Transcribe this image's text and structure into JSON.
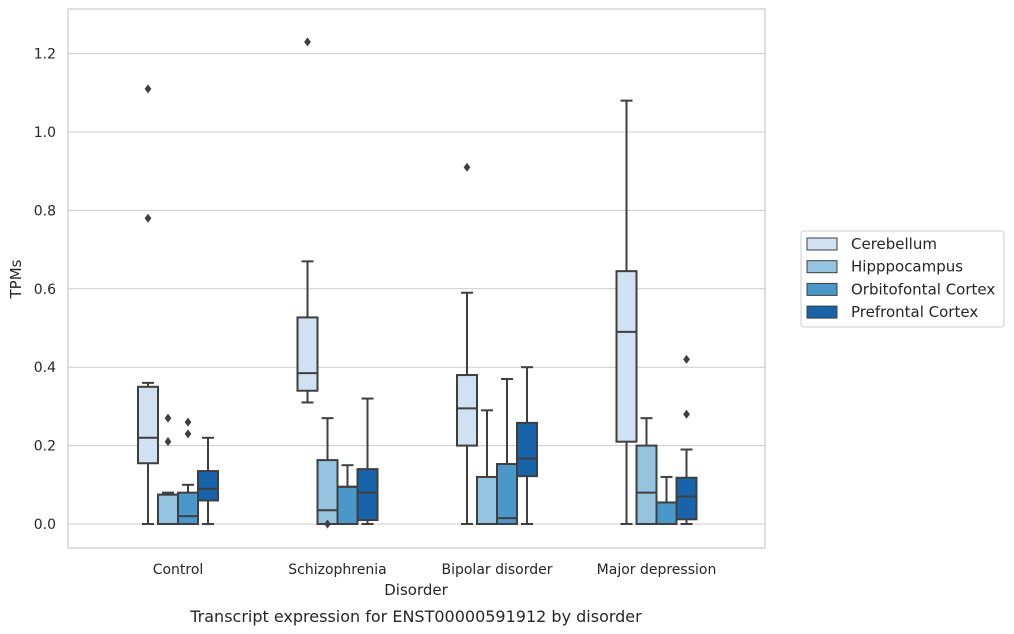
{
  "chart_data": {
    "type": "box",
    "xlabel": "Disorder",
    "ylabel": "TPMs",
    "caption": "Transcript expression for ENST00000591912 by disorder",
    "ylim": [
      -0.06,
      1.32
    ],
    "yticks": [
      0.0,
      0.2,
      0.4,
      0.6,
      0.8,
      1.0,
      1.2
    ],
    "ytick_labels": [
      "0.0",
      "0.2",
      "0.4",
      "0.6",
      "0.8",
      "1.0",
      "1.2"
    ],
    "grid": "horizontal",
    "legend_position": "right",
    "categories": [
      "Control",
      "Schizophrenia",
      "Bipolar disorder",
      "Major depression"
    ],
    "series": [
      {
        "name": "Cerebellum",
        "color": "#d0e1f2",
        "boxes": [
          {
            "whislo": 0.0,
            "q1": 0.155,
            "med": 0.22,
            "q3": 0.35,
            "whishi": 0.36,
            "fliers": [
              0.78,
              1.11
            ]
          },
          {
            "whislo": 0.31,
            "q1": 0.34,
            "med": 0.385,
            "q3": 0.527,
            "whishi": 0.67,
            "fliers": [
              1.23
            ]
          },
          {
            "whislo": 0.0,
            "q1": 0.2,
            "med": 0.295,
            "q3": 0.38,
            "whishi": 0.59,
            "fliers": [
              0.91
            ]
          },
          {
            "whislo": 0.0,
            "q1": 0.21,
            "med": 0.49,
            "q3": 0.645,
            "whishi": 1.08,
            "fliers": []
          }
        ]
      },
      {
        "name": "Hipppocampus",
        "color": "#94c4df",
        "boxes": [
          {
            "whislo": 0.0,
            "q1": 0.0,
            "med": 0.075,
            "q3": 0.075,
            "whishi": 0.08,
            "fliers": [
              0.21,
              0.27
            ]
          },
          {
            "whislo": 0.0,
            "q1": 0.0,
            "med": 0.035,
            "q3": 0.163,
            "whishi": 0.27,
            "fliers": [
              0.0
            ]
          },
          {
            "whislo": 0.0,
            "q1": 0.0,
            "med": 0.0,
            "q3": 0.12,
            "whishi": 0.29,
            "fliers": []
          },
          {
            "whislo": 0.0,
            "q1": 0.0,
            "med": 0.08,
            "q3": 0.2,
            "whishi": 0.27,
            "fliers": []
          }
        ]
      },
      {
        "name": "Orbitofontal Cortex",
        "color": "#4a98c9",
        "boxes": [
          {
            "whislo": 0.0,
            "q1": 0.0,
            "med": 0.02,
            "q3": 0.08,
            "whishi": 0.1,
            "fliers": [
              0.23,
              0.26
            ]
          },
          {
            "whislo": 0.0,
            "q1": 0.0,
            "med": 0.095,
            "q3": 0.095,
            "whishi": 0.15,
            "fliers": []
          },
          {
            "whislo": 0.0,
            "q1": 0.0,
            "med": 0.015,
            "q3": 0.153,
            "whishi": 0.37,
            "fliers": []
          },
          {
            "whislo": 0.0,
            "q1": 0.0,
            "med": 0.055,
            "q3": 0.055,
            "whishi": 0.12,
            "fliers": []
          }
        ]
      },
      {
        "name": "Prefrontal Cortex",
        "color": "#1764ab",
        "boxes": [
          {
            "whislo": 0.0,
            "q1": 0.06,
            "med": 0.09,
            "q3": 0.135,
            "whishi": 0.22,
            "fliers": []
          },
          {
            "whislo": 0.0,
            "q1": 0.01,
            "med": 0.08,
            "q3": 0.14,
            "whishi": 0.32,
            "fliers": []
          },
          {
            "whislo": 0.0,
            "q1": 0.122,
            "med": 0.167,
            "q3": 0.258,
            "whishi": 0.4,
            "fliers": []
          },
          {
            "whislo": 0.0,
            "q1": 0.012,
            "med": 0.07,
            "q3": 0.118,
            "whishi": 0.19,
            "fliers": [
              0.28,
              0.42
            ]
          }
        ]
      }
    ]
  }
}
